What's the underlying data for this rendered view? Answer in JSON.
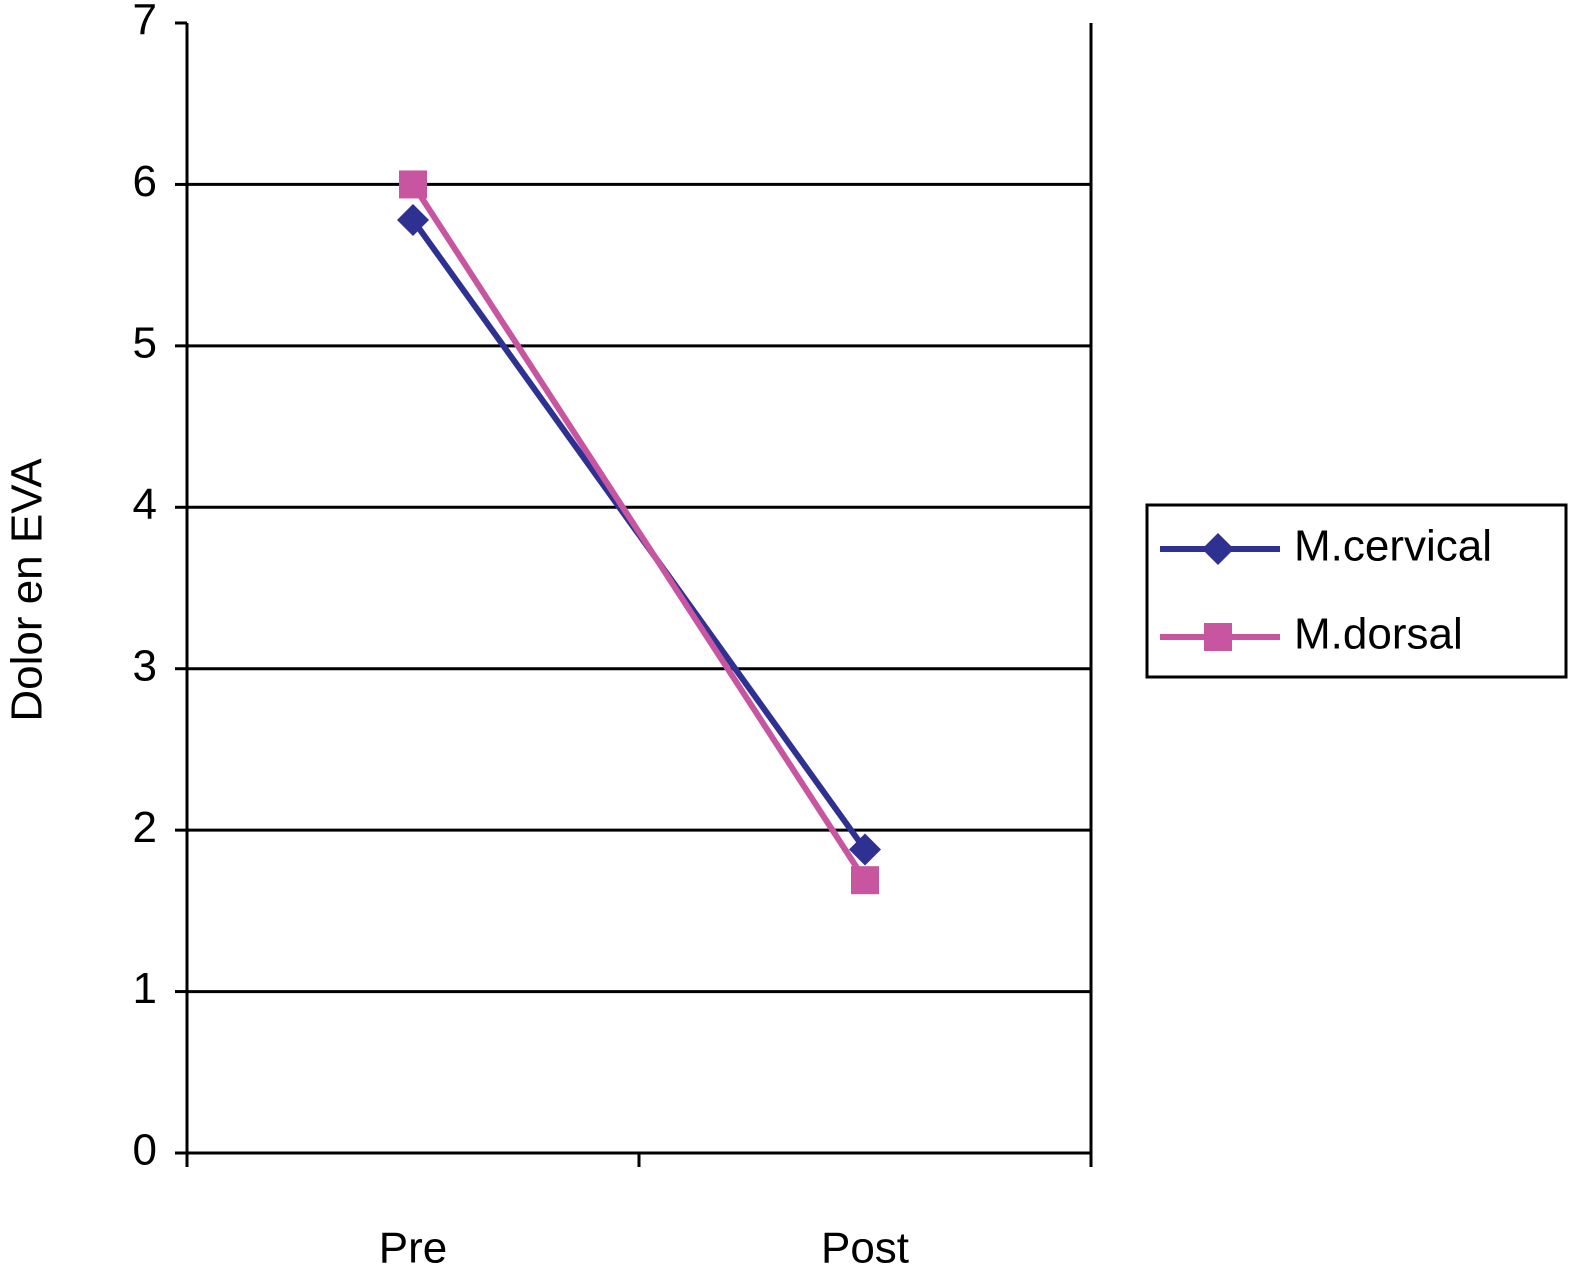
{
  "chart_data": {
    "type": "line",
    "y_label": "Dolor en EVA",
    "categories": [
      "Pre",
      "Post"
    ],
    "series": [
      {
        "name": "M.cervical",
        "color": "#2e3192",
        "marker": "diamond",
        "values": [
          5.78,
          1.88
        ]
      },
      {
        "name": "M.dorsal",
        "color": "#c8559f",
        "marker": "square",
        "values": [
          6.0,
          1.69
        ]
      }
    ],
    "ylim": [
      0,
      7
    ],
    "yticks": [
      0,
      1,
      2,
      3,
      4,
      5,
      6,
      7
    ],
    "grid": true,
    "legend": "right"
  }
}
